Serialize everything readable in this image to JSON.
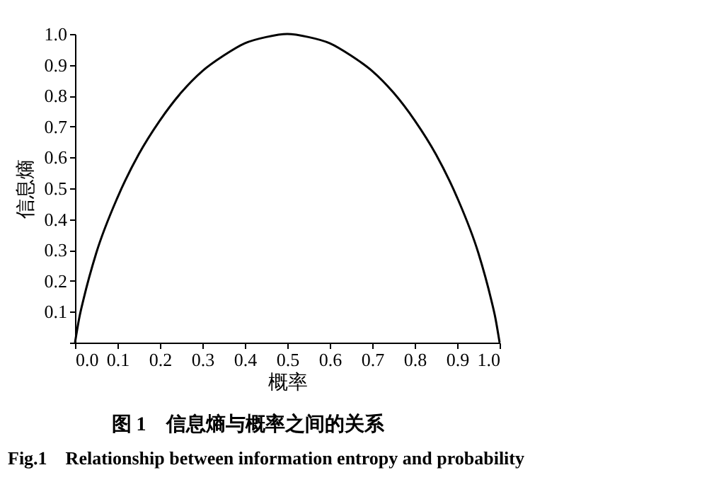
{
  "chart_data": {
    "type": "line",
    "xlabel": "概率",
    "ylabel": "信息熵",
    "annotations": [
      "图 1　信息熵与概率之间的关系",
      "Fig.1　Relationship between information entropy and probability"
    ],
    "x": [
      0,
      0.01,
      0.02,
      0.05,
      0.1,
      0.15,
      0.2,
      0.25,
      0.3,
      0.35,
      0.4,
      0.45,
      0.5,
      0.55,
      0.6,
      0.65,
      0.7,
      0.75,
      0.8,
      0.85,
      0.9,
      0.95,
      0.98,
      0.99,
      1.0
    ],
    "series": [
      {
        "color": "#000000",
        "values": [
          0,
          0.08,
          0.14,
          0.29,
          0.47,
          0.61,
          0.72,
          0.81,
          0.88,
          0.93,
          0.97,
          0.99,
          1.0,
          0.99,
          0.97,
          0.93,
          0.88,
          0.81,
          0.72,
          0.61,
          0.47,
          0.29,
          0.14,
          0.08,
          0
        ]
      }
    ],
    "xlim": [
      0,
      1
    ],
    "ylim": [
      0,
      1
    ],
    "xticks": [
      {
        "value": 0,
        "label": "0.0"
      },
      0.1,
      0.2,
      0.3,
      0.4,
      0.5,
      0.6,
      0.7,
      0.8,
      0.9,
      {
        "value": 1,
        "label": "1.0"
      }
    ],
    "yticks": [
      {
        "value": 0,
        "label": null
      },
      0.1,
      0.2,
      0.3,
      0.4,
      0.5,
      0.6,
      0.7,
      0.8,
      0.9,
      {
        "value": 1,
        "label": "1.0"
      }
    ],
    "grid": false,
    "marker": "none",
    "line_style": "solid"
  }
}
